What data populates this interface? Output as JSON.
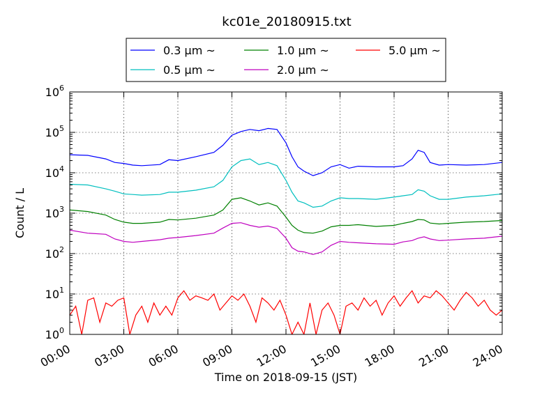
{
  "chart_data": {
    "type": "line",
    "title": "kc01e_20180915.txt",
    "xlabel": "Time on 2018-09-15 (JST)",
    "ylabel": "Count / L",
    "yscale": "log",
    "ylim": [
      1,
      1000000
    ],
    "ytick_values": [
      1,
      10,
      100,
      1000,
      10000,
      100000,
      1000000
    ],
    "ytick_labels": [
      {
        "base": "10",
        "exp": "0"
      },
      {
        "base": "10",
        "exp": "1"
      },
      {
        "base": "10",
        "exp": "2"
      },
      {
        "base": "10",
        "exp": "3"
      },
      {
        "base": "10",
        "exp": "4"
      },
      {
        "base": "10",
        "exp": "5"
      },
      {
        "base": "10",
        "exp": "6"
      }
    ],
    "xlim": [
      "00:00",
      "24:00"
    ],
    "xtick_labels": [
      "00:00",
      "03:00",
      "06:00",
      "09:00",
      "12:00",
      "15:00",
      "18:00",
      "21:00",
      "24:00"
    ],
    "grid": true,
    "legend_position": "top-center",
    "series": [
      {
        "name": "0.3 μm ~",
        "color": "#0000ff",
        "points": [
          [
            "00:00",
            28000
          ],
          [
            "01:00",
            27000
          ],
          [
            "02:00",
            22000
          ],
          [
            "02:30",
            18000
          ],
          [
            "03:00",
            17000
          ],
          [
            "03:30",
            15500
          ],
          [
            "04:00",
            15000
          ],
          [
            "05:00",
            16000
          ],
          [
            "05:30",
            21000
          ],
          [
            "06:00",
            20000
          ],
          [
            "07:00",
            25000
          ],
          [
            "08:00",
            32000
          ],
          [
            "08:30",
            48000
          ],
          [
            "09:00",
            85000
          ],
          [
            "09:30",
            105000
          ],
          [
            "10:00",
            118000
          ],
          [
            "10:30",
            110000
          ],
          [
            "11:00",
            125000
          ],
          [
            "11:30",
            118000
          ],
          [
            "12:00",
            55000
          ],
          [
            "12:20",
            25000
          ],
          [
            "12:40",
            14000
          ],
          [
            "13:00",
            11000
          ],
          [
            "13:30",
            8500
          ],
          [
            "14:00",
            10000
          ],
          [
            "14:30",
            14000
          ],
          [
            "15:00",
            16000
          ],
          [
            "15:30",
            13000
          ],
          [
            "16:00",
            14500
          ],
          [
            "17:00",
            14000
          ],
          [
            "18:00",
            14000
          ],
          [
            "18:30",
            15000
          ],
          [
            "19:00",
            22000
          ],
          [
            "19:20",
            36000
          ],
          [
            "19:40",
            32000
          ],
          [
            "20:00",
            18000
          ],
          [
            "20:30",
            15500
          ],
          [
            "21:00",
            16000
          ],
          [
            "22:00",
            15500
          ],
          [
            "23:00",
            16000
          ],
          [
            "24:00",
            18000
          ]
        ]
      },
      {
        "name": "0.5 μm ~",
        "color": "#00bfbf",
        "points": [
          [
            "00:00",
            5200
          ],
          [
            "01:00",
            5000
          ],
          [
            "02:00",
            4000
          ],
          [
            "02:30",
            3500
          ],
          [
            "03:00",
            3000
          ],
          [
            "03:30",
            2900
          ],
          [
            "04:00",
            2800
          ],
          [
            "05:00",
            2900
          ],
          [
            "05:30",
            3300
          ],
          [
            "06:00",
            3300
          ],
          [
            "07:00",
            3700
          ],
          [
            "08:00",
            4500
          ],
          [
            "08:30",
            6500
          ],
          [
            "09:00",
            14000
          ],
          [
            "09:30",
            20000
          ],
          [
            "10:00",
            22000
          ],
          [
            "10:30",
            16000
          ],
          [
            "11:00",
            18000
          ],
          [
            "11:30",
            15000
          ],
          [
            "12:00",
            6500
          ],
          [
            "12:20",
            3300
          ],
          [
            "12:40",
            2000
          ],
          [
            "13:00",
            1800
          ],
          [
            "13:30",
            1400
          ],
          [
            "14:00",
            1500
          ],
          [
            "14:30",
            2000
          ],
          [
            "15:00",
            2400
          ],
          [
            "15:30",
            2300
          ],
          [
            "16:00",
            2300
          ],
          [
            "17:00",
            2200
          ],
          [
            "18:00",
            2500
          ],
          [
            "18:30",
            2700
          ],
          [
            "19:00",
            2900
          ],
          [
            "19:20",
            3800
          ],
          [
            "19:40",
            3500
          ],
          [
            "20:00",
            2700
          ],
          [
            "20:30",
            2200
          ],
          [
            "21:00",
            2200
          ],
          [
            "22:00",
            2500
          ],
          [
            "23:00",
            2700
          ],
          [
            "24:00",
            3000
          ]
        ]
      },
      {
        "name": "1.0 μm ~",
        "color": "#008000",
        "points": [
          [
            "00:00",
            1200
          ],
          [
            "01:00",
            1100
          ],
          [
            "02:00",
            900
          ],
          [
            "02:30",
            700
          ],
          [
            "03:00",
            600
          ],
          [
            "03:30",
            560
          ],
          [
            "04:00",
            560
          ],
          [
            "05:00",
            600
          ],
          [
            "05:30",
            700
          ],
          [
            "06:00",
            680
          ],
          [
            "07:00",
            750
          ],
          [
            "08:00",
            900
          ],
          [
            "08:30",
            1200
          ],
          [
            "09:00",
            2200
          ],
          [
            "09:30",
            2400
          ],
          [
            "10:00",
            2000
          ],
          [
            "10:30",
            1600
          ],
          [
            "11:00",
            1800
          ],
          [
            "11:30",
            1500
          ],
          [
            "12:00",
            800
          ],
          [
            "12:20",
            500
          ],
          [
            "12:40",
            380
          ],
          [
            "13:00",
            330
          ],
          [
            "13:30",
            320
          ],
          [
            "14:00",
            360
          ],
          [
            "14:30",
            460
          ],
          [
            "15:00",
            500
          ],
          [
            "15:30",
            500
          ],
          [
            "16:00",
            520
          ],
          [
            "17:00",
            470
          ],
          [
            "18:00",
            500
          ],
          [
            "18:30",
            560
          ],
          [
            "19:00",
            620
          ],
          [
            "19:20",
            700
          ],
          [
            "19:40",
            680
          ],
          [
            "20:00",
            570
          ],
          [
            "20:30",
            540
          ],
          [
            "21:00",
            560
          ],
          [
            "22:00",
            600
          ],
          [
            "23:00",
            620
          ],
          [
            "24:00",
            660
          ]
        ]
      },
      {
        "name": "2.0 μm ~",
        "color": "#bf00bf",
        "points": [
          [
            "00:00",
            380
          ],
          [
            "01:00",
            320
          ],
          [
            "02:00",
            300
          ],
          [
            "02:30",
            230
          ],
          [
            "03:00",
            200
          ],
          [
            "03:30",
            190
          ],
          [
            "04:00",
            200
          ],
          [
            "05:00",
            220
          ],
          [
            "05:30",
            240
          ],
          [
            "06:00",
            250
          ],
          [
            "07:00",
            280
          ],
          [
            "08:00",
            320
          ],
          [
            "08:30",
            430
          ],
          [
            "09:00",
            560
          ],
          [
            "09:30",
            580
          ],
          [
            "10:00",
            500
          ],
          [
            "10:30",
            450
          ],
          [
            "11:00",
            480
          ],
          [
            "11:30",
            420
          ],
          [
            "12:00",
            240
          ],
          [
            "12:20",
            140
          ],
          [
            "12:40",
            115
          ],
          [
            "13:00",
            110
          ],
          [
            "13:30",
            95
          ],
          [
            "14:00",
            110
          ],
          [
            "14:30",
            160
          ],
          [
            "15:00",
            200
          ],
          [
            "15:30",
            190
          ],
          [
            "16:00",
            185
          ],
          [
            "17:00",
            175
          ],
          [
            "18:00",
            170
          ],
          [
            "18:30",
            195
          ],
          [
            "19:00",
            210
          ],
          [
            "19:20",
            240
          ],
          [
            "19:40",
            260
          ],
          [
            "20:00",
            230
          ],
          [
            "20:30",
            210
          ],
          [
            "21:00",
            215
          ],
          [
            "22:00",
            230
          ],
          [
            "23:00",
            240
          ],
          [
            "24:00",
            270
          ]
        ]
      },
      {
        "name": "5.0 μm ~",
        "color": "#ff0000",
        "points": [
          [
            "00:00",
            3
          ],
          [
            "00:20",
            5
          ],
          [
            "00:40",
            1
          ],
          [
            "01:00",
            7
          ],
          [
            "01:20",
            8
          ],
          [
            "01:40",
            2
          ],
          [
            "02:00",
            6
          ],
          [
            "02:20",
            5
          ],
          [
            "02:40",
            7
          ],
          [
            "03:00",
            8
          ],
          [
            "03:20",
            1
          ],
          [
            "03:40",
            3
          ],
          [
            "04:00",
            5
          ],
          [
            "04:20",
            2
          ],
          [
            "04:40",
            6
          ],
          [
            "05:00",
            3
          ],
          [
            "05:20",
            5
          ],
          [
            "05:40",
            3
          ],
          [
            "06:00",
            8
          ],
          [
            "06:20",
            12
          ],
          [
            "06:40",
            7
          ],
          [
            "07:00",
            9
          ],
          [
            "07:20",
            8
          ],
          [
            "07:40",
            7
          ],
          [
            "08:00",
            10
          ],
          [
            "08:20",
            4
          ],
          [
            "08:40",
            6
          ],
          [
            "09:00",
            9
          ],
          [
            "09:20",
            7
          ],
          [
            "09:40",
            10
          ],
          [
            "10:00",
            5
          ],
          [
            "10:20",
            2
          ],
          [
            "10:40",
            8
          ],
          [
            "11:00",
            6
          ],
          [
            "11:20",
            4
          ],
          [
            "11:40",
            7
          ],
          [
            "12:00",
            3
          ],
          [
            "12:20",
            1
          ],
          [
            "12:40",
            2
          ],
          [
            "13:00",
            1
          ],
          [
            "13:20",
            6
          ],
          [
            "13:40",
            1
          ],
          [
            "14:00",
            4
          ],
          [
            "14:20",
            6
          ],
          [
            "14:40",
            3
          ],
          [
            "15:00",
            1
          ],
          [
            "15:20",
            5
          ],
          [
            "15:40",
            6
          ],
          [
            "16:00",
            4
          ],
          [
            "16:20",
            8
          ],
          [
            "16:40",
            5
          ],
          [
            "17:00",
            7
          ],
          [
            "17:20",
            3
          ],
          [
            "17:40",
            6
          ],
          [
            "18:00",
            9
          ],
          [
            "18:20",
            5
          ],
          [
            "18:40",
            8
          ],
          [
            "19:00",
            12
          ],
          [
            "19:20",
            6
          ],
          [
            "19:40",
            9
          ],
          [
            "20:00",
            8
          ],
          [
            "20:20",
            12
          ],
          [
            "20:40",
            9
          ],
          [
            "21:00",
            6
          ],
          [
            "21:20",
            4
          ],
          [
            "21:40",
            7
          ],
          [
            "22:00",
            11
          ],
          [
            "22:20",
            8
          ],
          [
            "22:40",
            5
          ],
          [
            "23:00",
            7
          ],
          [
            "23:20",
            4
          ],
          [
            "23:40",
            3
          ],
          [
            "24:00",
            4
          ]
        ]
      }
    ]
  }
}
